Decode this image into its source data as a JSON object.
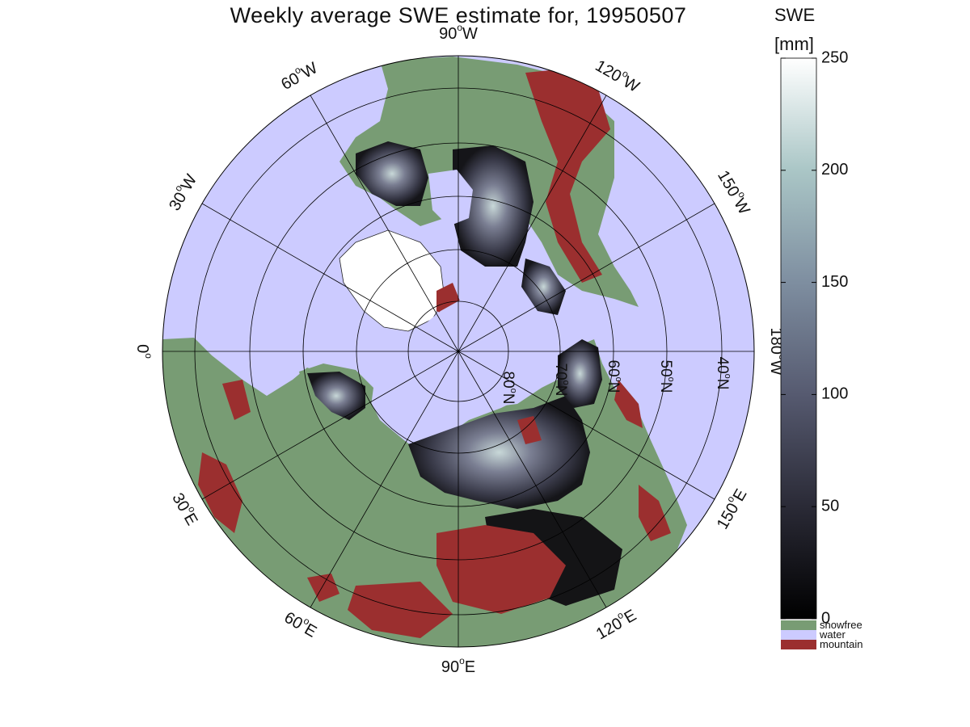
{
  "title": "Weekly average SWE estimate for, 19950507",
  "map": {
    "projection": "north polar stereographic",
    "longitude_labels": [
      {
        "text": "90",
        "dir": "W",
        "lon": "90W"
      },
      {
        "text": "120",
        "dir": "W",
        "lon": "120W"
      },
      {
        "text": "150",
        "dir": "W",
        "lon": "150W"
      },
      {
        "text": "180",
        "dir": "W",
        "lon": "180W"
      },
      {
        "text": "150",
        "dir": "E",
        "lon": "150E"
      },
      {
        "text": "120",
        "dir": "E",
        "lon": "120E"
      },
      {
        "text": "90",
        "dir": "E",
        "lon": "90E"
      },
      {
        "text": "60",
        "dir": "E",
        "lon": "60E"
      },
      {
        "text": "30",
        "dir": "E",
        "lon": "30E"
      },
      {
        "text": "0",
        "dir": "",
        "lon": "0"
      },
      {
        "text": "30",
        "dir": "W",
        "lon": "30W"
      },
      {
        "text": "60",
        "dir": "W",
        "lon": "60W"
      }
    ],
    "latitude_labels": [
      {
        "text": "80",
        "dir": "N"
      },
      {
        "text": "70",
        "dir": "N"
      },
      {
        "text": "60",
        "dir": "N"
      },
      {
        "text": "50",
        "dir": "N"
      },
      {
        "text": "40",
        "dir": "N"
      }
    ],
    "colors": {
      "water": "#cccbff",
      "snowfree": "#789c74",
      "mountain": "#9b2f2f",
      "grid": "#000000"
    }
  },
  "colorbar": {
    "title_line1": "SWE",
    "title_line2": "[mm]",
    "min": 0,
    "max": 250,
    "ticks": [
      "0",
      "50",
      "100",
      "150",
      "200",
      "250"
    ],
    "categories": [
      {
        "label": "snowfree",
        "color": "#789c74"
      },
      {
        "label": "water",
        "color": "#cccbff"
      },
      {
        "label": "mountain",
        "color": "#9b2f2f"
      }
    ]
  }
}
